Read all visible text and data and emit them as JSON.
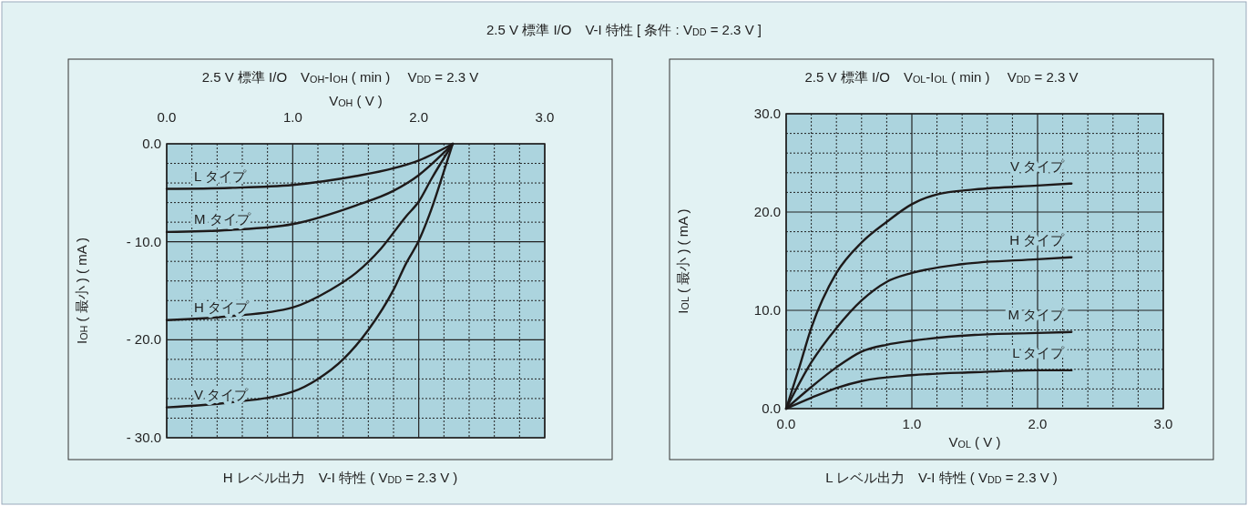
{
  "chart_data": [
    {
      "type": "line",
      "title": "2.5 V 標準 I/O　V$_{OH}$-I$_{OH}$ ( min )　 V$_{DD}$ = 2.3 V",
      "xlabel": "V$_{OH}$ ( V )",
      "ylabel": "I$_{OH}$ ( 最小 ) ( mA )",
      "annotations": [
        "2.5 V 標準 I/O　V-I 特性 [ 条件 : V$_{DD}$ = 2.3 V ]",
        "H レベル出力　V-I 特性 ( V$_{DD}$ = 2.3 V )"
      ],
      "xlim": [
        0,
        3
      ],
      "ylim": [
        -30,
        0
      ],
      "xticks": [
        {
          "value": 0,
          "label": "0.0"
        },
        {
          "value": 0.2,
          "label": null
        },
        {
          "value": 0.4,
          "label": null
        },
        {
          "value": 0.6,
          "label": null
        },
        {
          "value": 0.8,
          "label": null
        },
        {
          "value": 1,
          "label": "1.0"
        },
        {
          "value": 1.2,
          "label": null
        },
        {
          "value": 1.4,
          "label": null
        },
        {
          "value": 1.6,
          "label": null
        },
        {
          "value": 1.8,
          "label": null
        },
        {
          "value": 2,
          "label": "2.0"
        },
        {
          "value": 2.2,
          "label": null
        },
        {
          "value": 2.4,
          "label": null
        },
        {
          "value": 2.6,
          "label": null
        },
        {
          "value": 2.8,
          "label": null
        },
        {
          "value": 3,
          "label": "3.0"
        }
      ],
      "yticks": [
        {
          "value": 0,
          "label": "0.0"
        },
        {
          "value": -2,
          "label": null
        },
        {
          "value": -4,
          "label": null
        },
        {
          "value": -6,
          "label": null
        },
        {
          "value": -8,
          "label": null
        },
        {
          "value": -10,
          "label": "- 10.0"
        },
        {
          "value": -12,
          "label": null
        },
        {
          "value": -14,
          "label": null
        },
        {
          "value": -16,
          "label": null
        },
        {
          "value": -18,
          "label": null
        },
        {
          "value": -20,
          "label": "- 20.0"
        },
        {
          "value": -22,
          "label": null
        },
        {
          "value": -24,
          "label": null
        },
        {
          "value": -26,
          "label": null
        },
        {
          "value": -28,
          "label": null
        },
        {
          "value": -30,
          "label": "- 30.0"
        }
      ],
      "grid": true,
      "marker": "none",
      "line_style": "solid",
      "series": [
        {
          "name": "L タイプ",
          "color": "#1e1a1a",
          "x": [
            0,
            0.5,
            1,
            1.5,
            1.8,
            2,
            2.27
          ],
          "values": [
            -4.6,
            -4.5,
            -4.2,
            -3.3,
            -2.5,
            -1.7,
            0
          ]
        },
        {
          "name": "M タイプ",
          "color": "#1e1a1a",
          "x": [
            0,
            0.5,
            1,
            1.5,
            1.8,
            2,
            2.2,
            2.27
          ],
          "values": [
            -9.0,
            -8.8,
            -8.2,
            -6.3,
            -4.8,
            -3.2,
            -0.9,
            0
          ]
        },
        {
          "name": "H タイプ",
          "color": "#1e1a1a",
          "x": [
            0,
            0.5,
            1,
            1.3,
            1.5,
            1.7,
            1.9,
            2,
            2.1,
            2.27
          ],
          "values": [
            -18.0,
            -17.6,
            -16.7,
            -14.9,
            -13.2,
            -10.7,
            -7.4,
            -5.9,
            -3.6,
            0
          ]
        },
        {
          "name": "V タイプ",
          "color": "#1e1a1a",
          "x": [
            0,
            0.5,
            1,
            1.2,
            1.4,
            1.6,
            1.8,
            1.9,
            2,
            2.1,
            2.2,
            2.27
          ],
          "values": [
            -26.9,
            -26.4,
            -25.3,
            -24.0,
            -22.0,
            -19.0,
            -14.9,
            -12.2,
            -9.9,
            -6.7,
            -2.8,
            0
          ]
        }
      ]
    },
    {
      "type": "line",
      "title": "2.5 V 標準 I/O　V$_{OL}$-I$_{OL}$ ( min )　 V$_{DD}$ = 2.3 V",
      "xlabel": "V$_{OL}$ ( V )",
      "ylabel": "I$_{OL}$ ( 最小 ) ( mA )",
      "annotations": [
        "L レベル出力　V-I 特性 ( V$_{DD}$ = 2.3 V )"
      ],
      "xlim": [
        0,
        3
      ],
      "ylim": [
        0,
        30
      ],
      "xticks": [
        {
          "value": 0,
          "label": "0.0"
        },
        {
          "value": 0.2,
          "label": null
        },
        {
          "value": 0.4,
          "label": null
        },
        {
          "value": 0.6,
          "label": null
        },
        {
          "value": 0.8,
          "label": null
        },
        {
          "value": 1,
          "label": "1.0"
        },
        {
          "value": 1.2,
          "label": null
        },
        {
          "value": 1.4,
          "label": null
        },
        {
          "value": 1.6,
          "label": null
        },
        {
          "value": 1.8,
          "label": null
        },
        {
          "value": 2,
          "label": "2.0"
        },
        {
          "value": 2.2,
          "label": null
        },
        {
          "value": 2.4,
          "label": null
        },
        {
          "value": 2.6,
          "label": null
        },
        {
          "value": 2.8,
          "label": null
        },
        {
          "value": 3,
          "label": "3.0"
        }
      ],
      "yticks": [
        {
          "value": 0,
          "label": "0.0"
        },
        {
          "value": 2,
          "label": null
        },
        {
          "value": 4,
          "label": null
        },
        {
          "value": 6,
          "label": null
        },
        {
          "value": 8,
          "label": null
        },
        {
          "value": 10,
          "label": "10.0"
        },
        {
          "value": 12,
          "label": null
        },
        {
          "value": 14,
          "label": null
        },
        {
          "value": 16,
          "label": null
        },
        {
          "value": 18,
          "label": null
        },
        {
          "value": 20,
          "label": "20.0"
        },
        {
          "value": 22,
          "label": null
        },
        {
          "value": 24,
          "label": null
        },
        {
          "value": 26,
          "label": null
        },
        {
          "value": 28,
          "label": null
        },
        {
          "value": 30,
          "label": "30.0"
        }
      ],
      "grid": true,
      "marker": "none",
      "line_style": "solid",
      "series": [
        {
          "name": "V タイプ",
          "color": "#1e1a1a",
          "x": [
            0,
            0.1,
            0.2,
            0.4,
            0.6,
            0.8,
            1,
            1.2,
            1.5,
            2,
            2.27
          ],
          "values": [
            0,
            4.0,
            8.2,
            13.8,
            16.9,
            19.0,
            20.8,
            21.8,
            22.3,
            22.7,
            22.9
          ]
        },
        {
          "name": "H タイプ",
          "color": "#1e1a1a",
          "x": [
            0,
            0.2,
            0.4,
            0.6,
            0.8,
            1,
            1.4,
            2,
            2.27
          ],
          "values": [
            0,
            4.7,
            8.2,
            11.0,
            12.9,
            13.8,
            14.7,
            15.2,
            15.4
          ]
        },
        {
          "name": "M タイプ",
          "color": "#1e1a1a",
          "x": [
            0,
            0.2,
            0.4,
            0.6,
            0.8,
            1,
            1.5,
            2,
            2.27
          ],
          "values": [
            0,
            2.2,
            4.2,
            5.8,
            6.5,
            6.9,
            7.5,
            7.7,
            7.8
          ]
        },
        {
          "name": "L タイプ",
          "color": "#1e1a1a",
          "x": [
            0,
            0.2,
            0.4,
            0.6,
            1,
            1.5,
            2,
            2.27
          ],
          "values": [
            0,
            1.1,
            2.1,
            2.8,
            3.4,
            3.7,
            3.9,
            3.9
          ]
        }
      ]
    }
  ]
}
